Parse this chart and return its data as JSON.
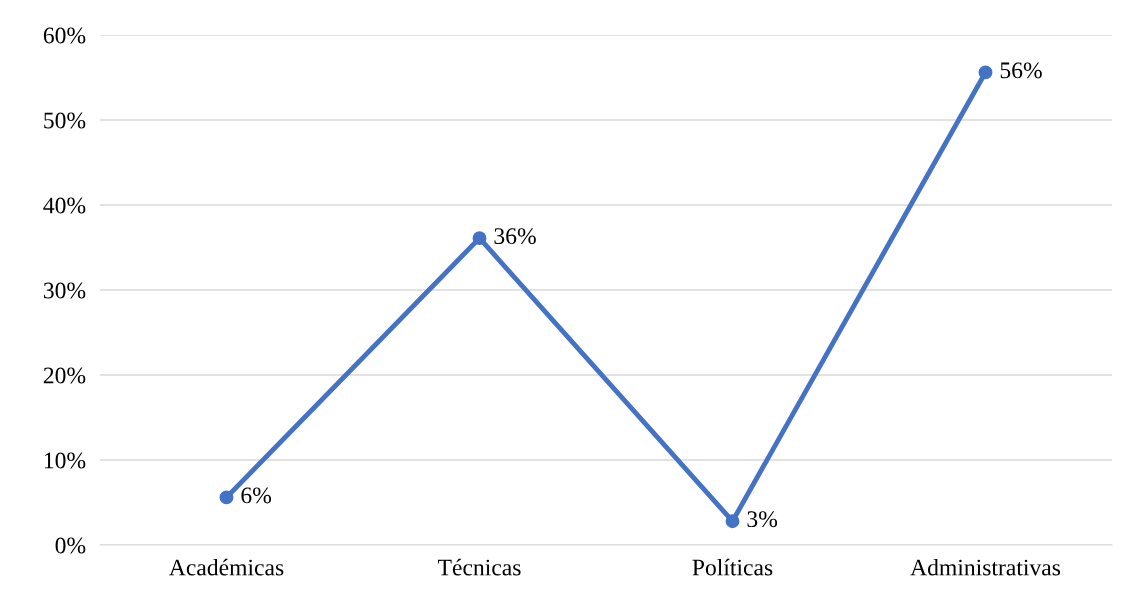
{
  "chart_data": {
    "type": "line",
    "categories": [
      "Académicas",
      "Técnicas",
      "Políticas",
      "Administrativas"
    ],
    "series": [
      {
        "color": "#4472c4",
        "values": [
          5.6,
          36.1,
          2.8,
          55.6
        ],
        "value_labels": [
          "6%",
          "36%",
          "3%",
          "56%"
        ]
      }
    ],
    "ylim": [
      0,
      60
    ],
    "yticks": [
      {
        "value": 0,
        "label": "0%"
      },
      {
        "value": 10,
        "label": "10%"
      },
      {
        "value": 20,
        "label": "20%"
      },
      {
        "value": 30,
        "label": "30%"
      },
      {
        "value": 40,
        "label": "40%"
      },
      {
        "value": 50,
        "label": "50%"
      },
      {
        "value": 60,
        "label": "60%"
      }
    ],
    "grid": "y",
    "marker": "circle",
    "line_style": "solid",
    "legend": false
  }
}
